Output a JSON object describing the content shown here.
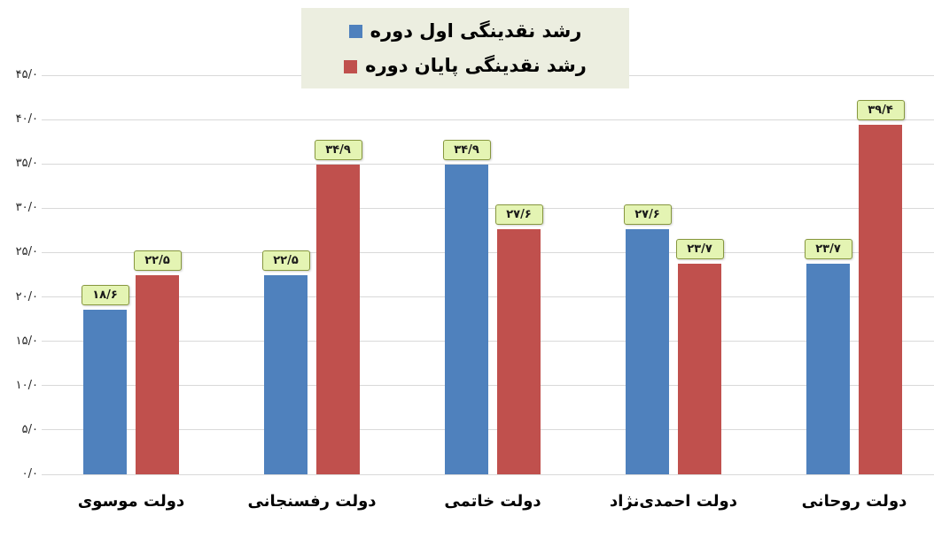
{
  "chart_data": {
    "type": "bar",
    "direction": "rtl",
    "title": "",
    "categories": [
      "دولت موسوی",
      "دولت رفسنجانی",
      "دولت خاتمی",
      "دولت احمدی‌نژاد",
      "دولت روحانی"
    ],
    "series": [
      {
        "name": "رشد نقدینگی اول دوره",
        "color": "#4f81bd",
        "values": [
          18.6,
          22.5,
          34.9,
          27.6,
          23.7
        ],
        "value_labels": [
          "۱۸/۶",
          "۲۲/۵",
          "۳۴/۹",
          "۲۷/۶",
          "۲۳/۷"
        ]
      },
      {
        "name": "رشد نقدینگی پایان دوره",
        "color": "#c0504d",
        "values": [
          22.5,
          34.9,
          27.6,
          23.7,
          39.4
        ],
        "value_labels": [
          "۲۲/۵",
          "۳۴/۹",
          "۲۷/۶",
          "۲۳/۷",
          "۳۹/۴"
        ]
      }
    ],
    "y_axis": {
      "min": 0,
      "max": 45,
      "step": 5,
      "tick_labels_bottom_to_top": [
        "۰/۰",
        "۵/۰",
        "۱۰/۰",
        "۱۵/۰",
        "۲۰/۰",
        "۲۵/۰",
        "۳۰/۰",
        "۳۵/۰",
        "۴۰/۰",
        "۴۵/۰"
      ]
    },
    "grid": true,
    "legend_position": "top-center",
    "colors": {
      "gridline": "#d9d9d9",
      "value_label_bg": "#e4f4b3",
      "value_label_border": "#87973f",
      "legend_bg": "#eceee0",
      "text": "#000000"
    }
  }
}
